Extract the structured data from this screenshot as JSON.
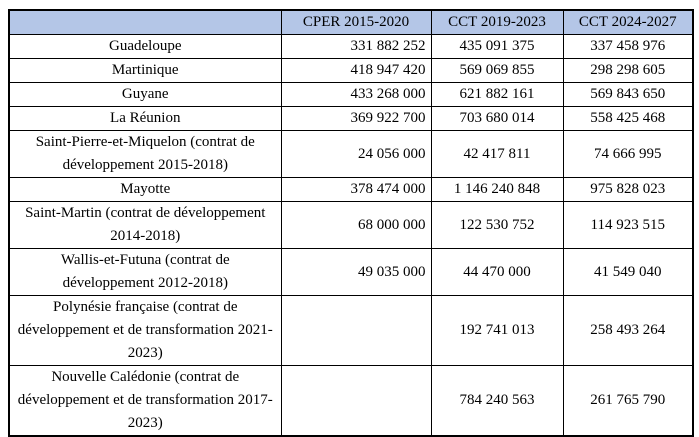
{
  "table": {
    "header_bg": "#B4C6E7",
    "border_color": "#000000",
    "columns": {
      "territory": "",
      "cper": "CPER 2015-2020",
      "cct1": "CCT 2019-2023",
      "cct2": "CCT 2024-2027"
    },
    "rows": [
      {
        "label": "Guadeloupe",
        "cper": "331 882 252",
        "cct1": "435 091 375",
        "cct2": "337 458 976"
      },
      {
        "label": "Martinique",
        "cper": "418 947 420",
        "cct1": "569 069 855",
        "cct2": "298 298 605"
      },
      {
        "label": "Guyane",
        "cper": "433 268 000",
        "cct1": "621 882 161",
        "cct2": "569 843 650"
      },
      {
        "label": "La Réunion",
        "cper": "369 922 700",
        "cct1": "703 680 014",
        "cct2": "558 425 468"
      },
      {
        "label": "Saint-Pierre-et-Miquelon (contrat de développement 2015-2018)",
        "cper": "24 056 000",
        "cct1": "42 417 811",
        "cct2": "74 666 995"
      },
      {
        "label": "Mayotte",
        "cper": "378 474 000",
        "cct1": "1 146 240 848",
        "cct2": "975 828 023"
      },
      {
        "label": "Saint-Martin (contrat de développement 2014-2018)",
        "cper": "68 000 000",
        "cct1": "122 530 752",
        "cct2": "114 923 515"
      },
      {
        "label": "Wallis-et-Futuna (contrat de développement 2012-2018)",
        "cper": "49 035 000",
        "cct1": "44 470 000",
        "cct2": "41 549 040"
      },
      {
        "label": "Polynésie française (contrat de développement et de transformation 2021-2023)",
        "cper": "",
        "cct1": "192 741 013",
        "cct2": "258 493 264"
      },
      {
        "label": "Nouvelle Calédonie (contrat de développement et de transformation 2017-2023)",
        "cper": "",
        "cct1": "784 240 563",
        "cct2": "261 765 790"
      }
    ]
  }
}
